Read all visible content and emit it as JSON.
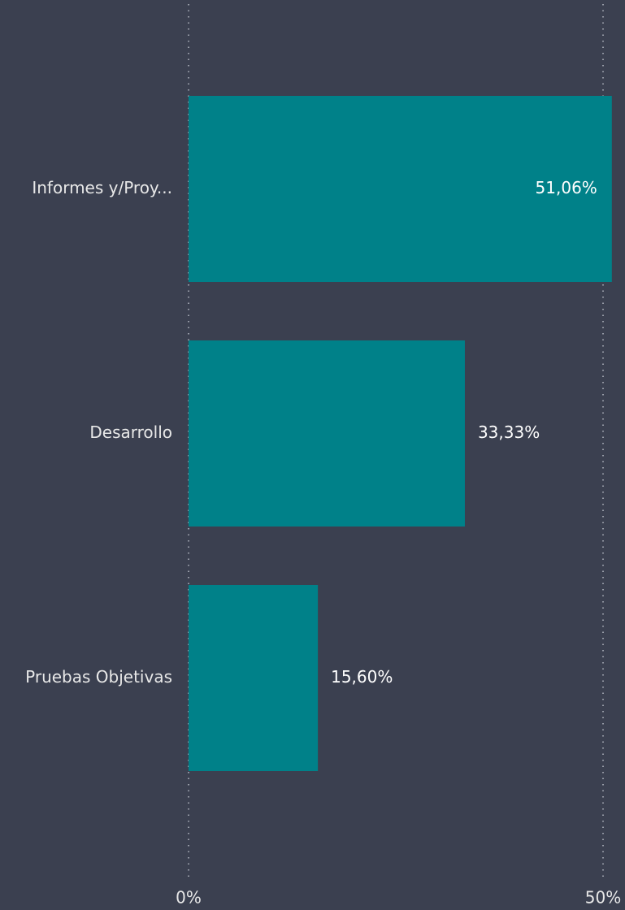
{
  "chart_data": {
    "type": "bar",
    "orientation": "horizontal",
    "categories": [
      "Informes y/Proy...",
      "Desarrollo",
      "Pruebas Objetivas"
    ],
    "values": [
      51.06,
      33.33,
      15.6
    ],
    "value_labels": [
      "51,06%",
      "33,33%",
      "15,60%"
    ],
    "color": "#008189",
    "xlim": [
      0,
      52.5
    ],
    "xticks": [
      {
        "value": 0,
        "label": "0%"
      },
      {
        "value": 50,
        "label": "50%"
      }
    ],
    "grid": true
  }
}
